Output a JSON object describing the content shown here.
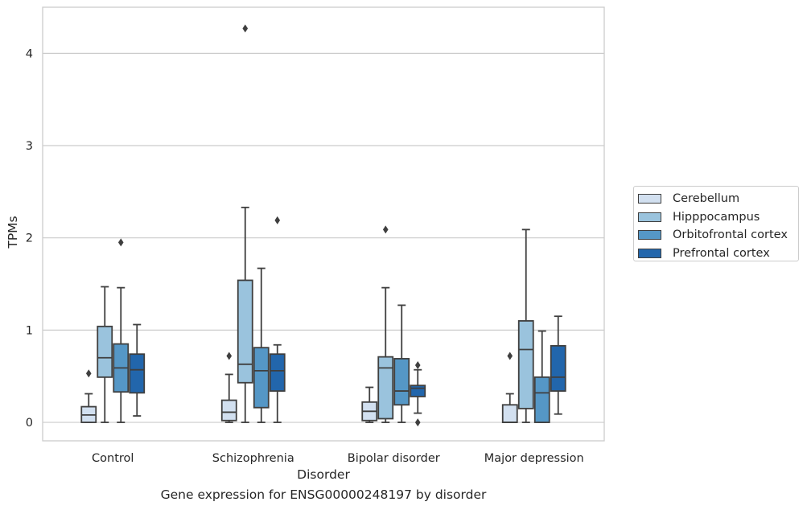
{
  "chart_data": {
    "type": "box",
    "title": "Gene expression for ENSG00000248197 by disorder",
    "xlabel": "Disorder",
    "ylabel": "TPMs",
    "ylim": [
      -0.2,
      4.5
    ],
    "yticks": [
      0,
      1,
      2,
      3,
      4
    ],
    "categories": [
      "Control",
      "Schizophrenia",
      "Bipolar disorder",
      "Major depression"
    ],
    "grid": true,
    "legend_position": "right",
    "series": [
      {
        "name": "Cerebellum",
        "color": "#d2e0f0",
        "boxes": [
          {
            "whislo": 0.0,
            "q1": 0.0,
            "med": 0.08,
            "q3": 0.17,
            "whishi": 0.31,
            "fliers": [
              0.53
            ]
          },
          {
            "whislo": 0.0,
            "q1": 0.02,
            "med": 0.11,
            "q3": 0.24,
            "whishi": 0.52,
            "fliers": [
              0.72
            ]
          },
          {
            "whislo": 0.0,
            "q1": 0.02,
            "med": 0.12,
            "q3": 0.22,
            "whishi": 0.38,
            "fliers": []
          },
          {
            "whislo": 0.0,
            "q1": 0.0,
            "med": 0.0,
            "q3": 0.19,
            "whishi": 0.31,
            "fliers": [
              0.72
            ]
          }
        ]
      },
      {
        "name": "Hipppocampus",
        "color": "#9ac3dd",
        "boxes": [
          {
            "whislo": 0.0,
            "q1": 0.49,
            "med": 0.7,
            "q3": 1.04,
            "whishi": 1.47,
            "fliers": []
          },
          {
            "whislo": 0.0,
            "q1": 0.43,
            "med": 0.63,
            "q3": 1.54,
            "whishi": 2.33,
            "fliers": [
              4.27
            ]
          },
          {
            "whislo": 0.0,
            "q1": 0.04,
            "med": 0.59,
            "q3": 0.71,
            "whishi": 1.46,
            "fliers": [
              2.09
            ]
          },
          {
            "whislo": 0.0,
            "q1": 0.15,
            "med": 0.79,
            "q3": 1.1,
            "whishi": 2.09,
            "fliers": []
          }
        ]
      },
      {
        "name": "Orbitofrontal cortex",
        "color": "#5597c6",
        "boxes": [
          {
            "whislo": 0.0,
            "q1": 0.33,
            "med": 0.59,
            "q3": 0.85,
            "whishi": 1.46,
            "fliers": [
              1.95
            ]
          },
          {
            "whislo": 0.0,
            "q1": 0.16,
            "med": 0.56,
            "q3": 0.81,
            "whishi": 1.67,
            "fliers": []
          },
          {
            "whislo": 0.0,
            "q1": 0.19,
            "med": 0.34,
            "q3": 0.69,
            "whishi": 1.27,
            "fliers": []
          },
          {
            "whislo": 0.0,
            "q1": 0.0,
            "med": 0.32,
            "q3": 0.49,
            "whishi": 0.99,
            "fliers": []
          }
        ]
      },
      {
        "name": "Prefrontal cortex",
        "color": "#2266ac",
        "boxes": [
          {
            "whislo": 0.07,
            "q1": 0.32,
            "med": 0.57,
            "q3": 0.74,
            "whishi": 1.06,
            "fliers": []
          },
          {
            "whislo": 0.0,
            "q1": 0.34,
            "med": 0.56,
            "q3": 0.74,
            "whishi": 0.84,
            "fliers": [
              2.19
            ]
          },
          {
            "whislo": 0.1,
            "q1": 0.28,
            "med": 0.37,
            "q3": 0.4,
            "whishi": 0.57,
            "fliers": [
              0.62,
              0.0
            ]
          },
          {
            "whislo": 0.09,
            "q1": 0.34,
            "med": 0.49,
            "q3": 0.83,
            "whishi": 1.15,
            "fliers": []
          }
        ]
      }
    ]
  }
}
